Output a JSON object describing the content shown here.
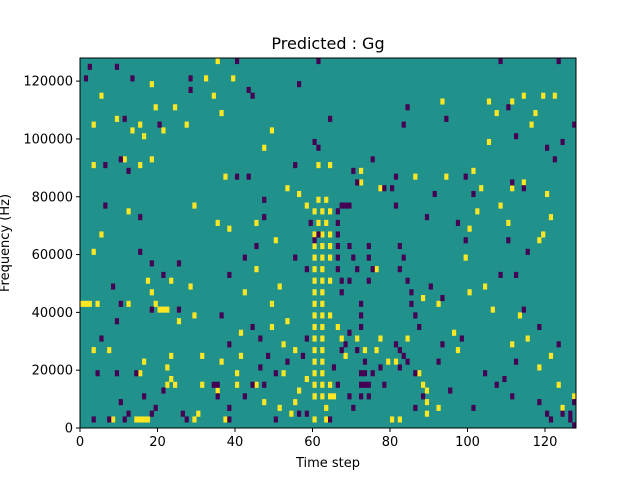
{
  "chart_data": {
    "type": "heatmap",
    "title": "Predicted : Gg",
    "xlabel": "Time step",
    "ylabel": "Frequency (Hz)",
    "xlim": [
      0,
      128
    ],
    "ylim": [
      0,
      128000
    ],
    "xticks": [
      0,
      20,
      40,
      60,
      80,
      100,
      120
    ],
    "xtick_labels": [
      "0",
      "20",
      "40",
      "60",
      "80",
      "100",
      "120"
    ],
    "yticks": [
      0,
      20000,
      40000,
      60000,
      80000,
      100000,
      120000
    ],
    "ytick_labels": [
      "0",
      "20000",
      "40000",
      "60000",
      "80000",
      "100000",
      "120000"
    ],
    "grid": false,
    "colormap": "viridis",
    "colors": {
      "background": "#21918c",
      "low": "#440154",
      "high": "#fde725"
    },
    "description_of_values": {
      "background_value": 0,
      "low_value": -1,
      "high_value": 1
    },
    "cells_high": [
      [
        35,
        126000
      ],
      [
        32,
        120000
      ],
      [
        39,
        120000
      ],
      [
        18,
        118000
      ],
      [
        5,
        114000
      ],
      [
        34,
        114000
      ],
      [
        114,
        114000
      ],
      [
        119,
        114000
      ],
      [
        122,
        114000
      ],
      [
        105,
        112000
      ],
      [
        111,
        112000
      ],
      [
        93,
        112000
      ],
      [
        24,
        110000
      ],
      [
        19,
        110000
      ],
      [
        36,
        108000
      ],
      [
        107,
        108000
      ],
      [
        117,
        108000
      ],
      [
        3,
        104000
      ],
      [
        13,
        102000
      ],
      [
        21,
        102000
      ],
      [
        116,
        104000
      ],
      [
        3,
        90000
      ],
      [
        64,
        90000
      ],
      [
        61,
        90000
      ],
      [
        18,
        92000
      ],
      [
        15,
        90000
      ],
      [
        47,
        96000
      ],
      [
        72,
        88000
      ],
      [
        37,
        86000
      ],
      [
        86,
        86000
      ],
      [
        94,
        86000
      ],
      [
        101,
        88000
      ],
      [
        114,
        84000
      ],
      [
        103,
        82000
      ],
      [
        53,
        82000
      ],
      [
        77,
        82000
      ],
      [
        72,
        84000
      ],
      [
        56,
        80000
      ],
      [
        58,
        76000
      ],
      [
        61,
        78000
      ],
      [
        63,
        78000
      ],
      [
        60,
        74000
      ],
      [
        62,
        74000
      ],
      [
        64,
        74000
      ],
      [
        61,
        70000
      ],
      [
        63,
        70000
      ],
      [
        60,
        66000
      ],
      [
        62,
        66000
      ],
      [
        64,
        66000
      ],
      [
        60,
        62000
      ],
      [
        62,
        62000
      ],
      [
        64,
        62000
      ],
      [
        60,
        58000
      ],
      [
        62,
        58000
      ],
      [
        64,
        58000
      ],
      [
        60,
        54000
      ],
      [
        62,
        54000
      ],
      [
        60,
        50000
      ],
      [
        62,
        50000
      ],
      [
        64,
        50000
      ],
      [
        60,
        46000
      ],
      [
        62,
        46000
      ],
      [
        60,
        42000
      ],
      [
        62,
        42000
      ],
      [
        60,
        38000
      ],
      [
        62,
        38000
      ],
      [
        64,
        38000
      ],
      [
        60,
        34000
      ],
      [
        62,
        34000
      ],
      [
        60,
        30000
      ],
      [
        62,
        30000
      ],
      [
        60,
        26000
      ],
      [
        62,
        26000
      ],
      [
        60,
        22000
      ],
      [
        62,
        22000
      ],
      [
        60,
        18000
      ],
      [
        62,
        18000
      ],
      [
        60,
        14000
      ],
      [
        62,
        14000
      ],
      [
        64,
        14000
      ],
      [
        60,
        10000
      ],
      [
        62,
        10000
      ],
      [
        64,
        10000
      ],
      [
        12,
        74000
      ],
      [
        5,
        66000
      ],
      [
        3,
        60000
      ],
      [
        29,
        76000
      ],
      [
        35,
        70000
      ],
      [
        38,
        68000
      ],
      [
        45,
        70000
      ],
      [
        50,
        64000
      ],
      [
        45,
        54000
      ],
      [
        51,
        48000
      ],
      [
        42,
        46000
      ],
      [
        49,
        42000
      ],
      [
        17,
        50000
      ],
      [
        18,
        46000
      ],
      [
        19,
        42000
      ],
      [
        23,
        50000
      ],
      [
        28,
        48000
      ],
      [
        29,
        38000
      ],
      [
        0,
        42000
      ],
      [
        1,
        42000
      ],
      [
        2,
        42000
      ],
      [
        4,
        42000
      ],
      [
        12,
        42000
      ],
      [
        20,
        40000
      ],
      [
        21,
        40000
      ],
      [
        22,
        40000
      ],
      [
        25,
        36000
      ],
      [
        41,
        32000
      ],
      [
        49,
        34000
      ],
      [
        53,
        36000
      ],
      [
        3,
        26000
      ],
      [
        7,
        26000
      ],
      [
        23,
        24000
      ],
      [
        22,
        20000
      ],
      [
        23,
        16000
      ],
      [
        22,
        14000
      ],
      [
        24,
        14000
      ],
      [
        16,
        22000
      ],
      [
        15,
        18000
      ],
      [
        31,
        24000
      ],
      [
        36,
        22000
      ],
      [
        41,
        24000
      ],
      [
        40,
        18000
      ],
      [
        40,
        14000
      ],
      [
        31,
        14000
      ],
      [
        35,
        12000
      ],
      [
        45,
        14000
      ],
      [
        52,
        18000
      ],
      [
        47,
        8000
      ],
      [
        56,
        12000
      ],
      [
        58,
        16000
      ],
      [
        54,
        4000
      ],
      [
        55,
        8000
      ],
      [
        51,
        6000
      ],
      [
        60,
        10000
      ],
      [
        63,
        6000
      ],
      [
        63,
        2000
      ],
      [
        60,
        2000
      ],
      [
        65,
        10000
      ],
      [
        73,
        26000
      ],
      [
        76,
        26000
      ],
      [
        68,
        24000
      ],
      [
        67,
        30000
      ],
      [
        66,
        34000
      ],
      [
        71,
        30000
      ],
      [
        77,
        30000
      ],
      [
        79,
        22000
      ],
      [
        81,
        22000
      ],
      [
        82,
        2000
      ],
      [
        80,
        2000
      ],
      [
        84,
        30000
      ],
      [
        87,
        18000
      ],
      [
        88,
        14000
      ],
      [
        89,
        12000
      ],
      [
        89,
        8000
      ],
      [
        89,
        4000
      ],
      [
        92,
        6000
      ],
      [
        97,
        26000
      ],
      [
        96,
        32000
      ],
      [
        100,
        46000
      ],
      [
        104,
        48000
      ],
      [
        106,
        40000
      ],
      [
        113,
        38000
      ],
      [
        111,
        28000
      ],
      [
        115,
        30000
      ],
      [
        123,
        14000
      ],
      [
        124,
        6000
      ],
      [
        127,
        10000
      ],
      [
        118,
        20000
      ],
      [
        121,
        24000
      ],
      [
        16,
        2000
      ],
      [
        14,
        2000
      ],
      [
        15,
        2000
      ],
      [
        17,
        2000
      ],
      [
        8,
        2000
      ],
      [
        29,
        2000
      ],
      [
        30,
        4000
      ],
      [
        37,
        2000
      ],
      [
        88,
        44000
      ],
      [
        92,
        42000
      ],
      [
        100,
        68000
      ],
      [
        102,
        74000
      ],
      [
        110,
        70000
      ],
      [
        108,
        76000
      ],
      [
        121,
        72000
      ],
      [
        118,
        64000
      ],
      [
        119,
        66000
      ],
      [
        99,
        58000
      ],
      [
        76,
        54000
      ],
      [
        55,
        26000
      ],
      [
        52,
        28000
      ],
      [
        16,
        100000
      ],
      [
        27,
        104000
      ],
      [
        9,
        106000
      ],
      [
        49,
        102000
      ],
      [
        15,
        104000
      ],
      [
        11,
        92000
      ],
      [
        120,
        80000
      ],
      [
        111,
        82000
      ],
      [
        105,
        98000
      ]
    ],
    "cells_low": [
      [
        2,
        124000
      ],
      [
        9,
        124000
      ],
      [
        1,
        120000
      ],
      [
        13,
        120000
      ],
      [
        28,
        120000
      ],
      [
        28,
        116000
      ],
      [
        43,
        116000
      ],
      [
        44,
        114000
      ],
      [
        40,
        126000
      ],
      [
        108,
        126000
      ],
      [
        123,
        126000
      ],
      [
        56,
        118000
      ],
      [
        84,
        110000
      ],
      [
        94,
        106000
      ],
      [
        110,
        110000
      ],
      [
        112,
        100000
      ],
      [
        83,
        104000
      ],
      [
        60,
        98000
      ],
      [
        20,
        104000
      ],
      [
        11,
        106000
      ],
      [
        10,
        92000
      ],
      [
        6,
        90000
      ],
      [
        12,
        88000
      ],
      [
        55,
        90000
      ],
      [
        61,
        96000
      ],
      [
        75,
        92000
      ],
      [
        70,
        88000
      ],
      [
        71,
        84000
      ],
      [
        40,
        86000
      ],
      [
        43,
        86000
      ],
      [
        78,
        82000
      ],
      [
        80,
        82000
      ],
      [
        81,
        86000
      ],
      [
        91,
        80000
      ],
      [
        101,
        80000
      ],
      [
        99,
        86000
      ],
      [
        114,
        82000
      ],
      [
        111,
        84000
      ],
      [
        122,
        92000
      ],
      [
        124,
        98000
      ],
      [
        127,
        104000
      ],
      [
        120,
        96000
      ],
      [
        47,
        78000
      ],
      [
        47,
        72000
      ],
      [
        59,
        70000
      ],
      [
        60,
        64000
      ],
      [
        61,
        66000
      ],
      [
        67,
        76000
      ],
      [
        68,
        76000
      ],
      [
        69,
        76000
      ],
      [
        66,
        74000
      ],
      [
        66,
        70000
      ],
      [
        66,
        66000
      ],
      [
        66,
        62000
      ],
      [
        66,
        58000
      ],
      [
        66,
        54000
      ],
      [
        67,
        50000
      ],
      [
        67,
        46000
      ],
      [
        69,
        62000
      ],
      [
        70,
        58000
      ],
      [
        71,
        54000
      ],
      [
        69,
        50000
      ],
      [
        74,
        62000
      ],
      [
        74,
        58000
      ],
      [
        75,
        54000
      ],
      [
        74,
        50000
      ],
      [
        82,
        62000
      ],
      [
        83,
        58000
      ],
      [
        82,
        54000
      ],
      [
        84,
        50000
      ],
      [
        85,
        46000
      ],
      [
        72,
        42000
      ],
      [
        72,
        38000
      ],
      [
        72,
        34000
      ],
      [
        85,
        42000
      ],
      [
        86,
        38000
      ],
      [
        87,
        34000
      ],
      [
        90,
        48000
      ],
      [
        93,
        44000
      ],
      [
        81,
        76000
      ],
      [
        89,
        72000
      ],
      [
        97,
        70000
      ],
      [
        99,
        64000
      ],
      [
        110,
        64000
      ],
      [
        115,
        60000
      ],
      [
        112,
        52000
      ],
      [
        6,
        76000
      ],
      [
        15,
        72000
      ],
      [
        15,
        60000
      ],
      [
        18,
        56000
      ],
      [
        25,
        56000
      ],
      [
        21,
        52000
      ],
      [
        45,
        62000
      ],
      [
        42,
        58000
      ],
      [
        38,
        52000
      ],
      [
        55,
        58000
      ],
      [
        58,
        54000
      ],
      [
        8,
        48000
      ],
      [
        10,
        42000
      ],
      [
        9,
        36000
      ],
      [
        18,
        40000
      ],
      [
        25,
        40000
      ],
      [
        36,
        38000
      ],
      [
        38,
        28000
      ],
      [
        44,
        34000
      ],
      [
        46,
        30000
      ],
      [
        5,
        30000
      ],
      [
        4,
        18000
      ],
      [
        9,
        18000
      ],
      [
        14,
        18000
      ],
      [
        16,
        10000
      ],
      [
        10,
        8000
      ],
      [
        12,
        4000
      ],
      [
        7,
        2000
      ],
      [
        3,
        2000
      ],
      [
        11,
        2000
      ],
      [
        18,
        4000
      ],
      [
        19,
        6000
      ],
      [
        21,
        12000
      ],
      [
        26,
        4000
      ],
      [
        27,
        2000
      ],
      [
        34,
        14000
      ],
      [
        35,
        14000
      ],
      [
        35,
        10000
      ],
      [
        38,
        2000
      ],
      [
        38,
        6000
      ],
      [
        44,
        14000
      ],
      [
        42,
        10000
      ],
      [
        47,
        14000
      ],
      [
        50,
        18000
      ],
      [
        46,
        20000
      ],
      [
        48,
        24000
      ],
      [
        53,
        22000
      ],
      [
        57,
        24000
      ],
      [
        58,
        30000
      ],
      [
        65,
        20000
      ],
      [
        67,
        26000
      ],
      [
        68,
        28000
      ],
      [
        69,
        32000
      ],
      [
        71,
        26000
      ],
      [
        73,
        22000
      ],
      [
        73,
        18000
      ],
      [
        73,
        14000
      ],
      [
        72,
        10000
      ],
      [
        74,
        10000
      ],
      [
        72,
        14000
      ],
      [
        74,
        14000
      ],
      [
        72,
        18000
      ],
      [
        75,
        18000
      ],
      [
        77,
        20000
      ],
      [
        78,
        14000
      ],
      [
        81,
        28000
      ],
      [
        82,
        26000
      ],
      [
        83,
        24000
      ],
      [
        82,
        20000
      ],
      [
        84,
        22000
      ],
      [
        86,
        18000
      ],
      [
        88,
        10000
      ],
      [
        86,
        6000
      ],
      [
        70,
        6000
      ],
      [
        69,
        10000
      ],
      [
        66,
        14000
      ],
      [
        64,
        2000
      ],
      [
        58,
        4000
      ],
      [
        50,
        2000
      ],
      [
        56,
        4000
      ],
      [
        95,
        12000
      ],
      [
        101,
        6000
      ],
      [
        104,
        18000
      ],
      [
        109,
        16000
      ],
      [
        112,
        22000
      ],
      [
        107,
        14000
      ],
      [
        111,
        10000
      ],
      [
        118,
        8000
      ],
      [
        121,
        2000
      ],
      [
        120,
        4000
      ],
      [
        124,
        4000
      ],
      [
        126,
        2000
      ],
      [
        127,
        0
      ],
      [
        126,
        4000
      ],
      [
        127,
        8000
      ],
      [
        123,
        28000
      ],
      [
        118,
        34000
      ],
      [
        114,
        40000
      ],
      [
        108,
        52000
      ],
      [
        98,
        30000
      ],
      [
        93,
        28000
      ],
      [
        92,
        22000
      ],
      [
        61,
        126000
      ],
      [
        64,
        106000
      ]
    ]
  }
}
